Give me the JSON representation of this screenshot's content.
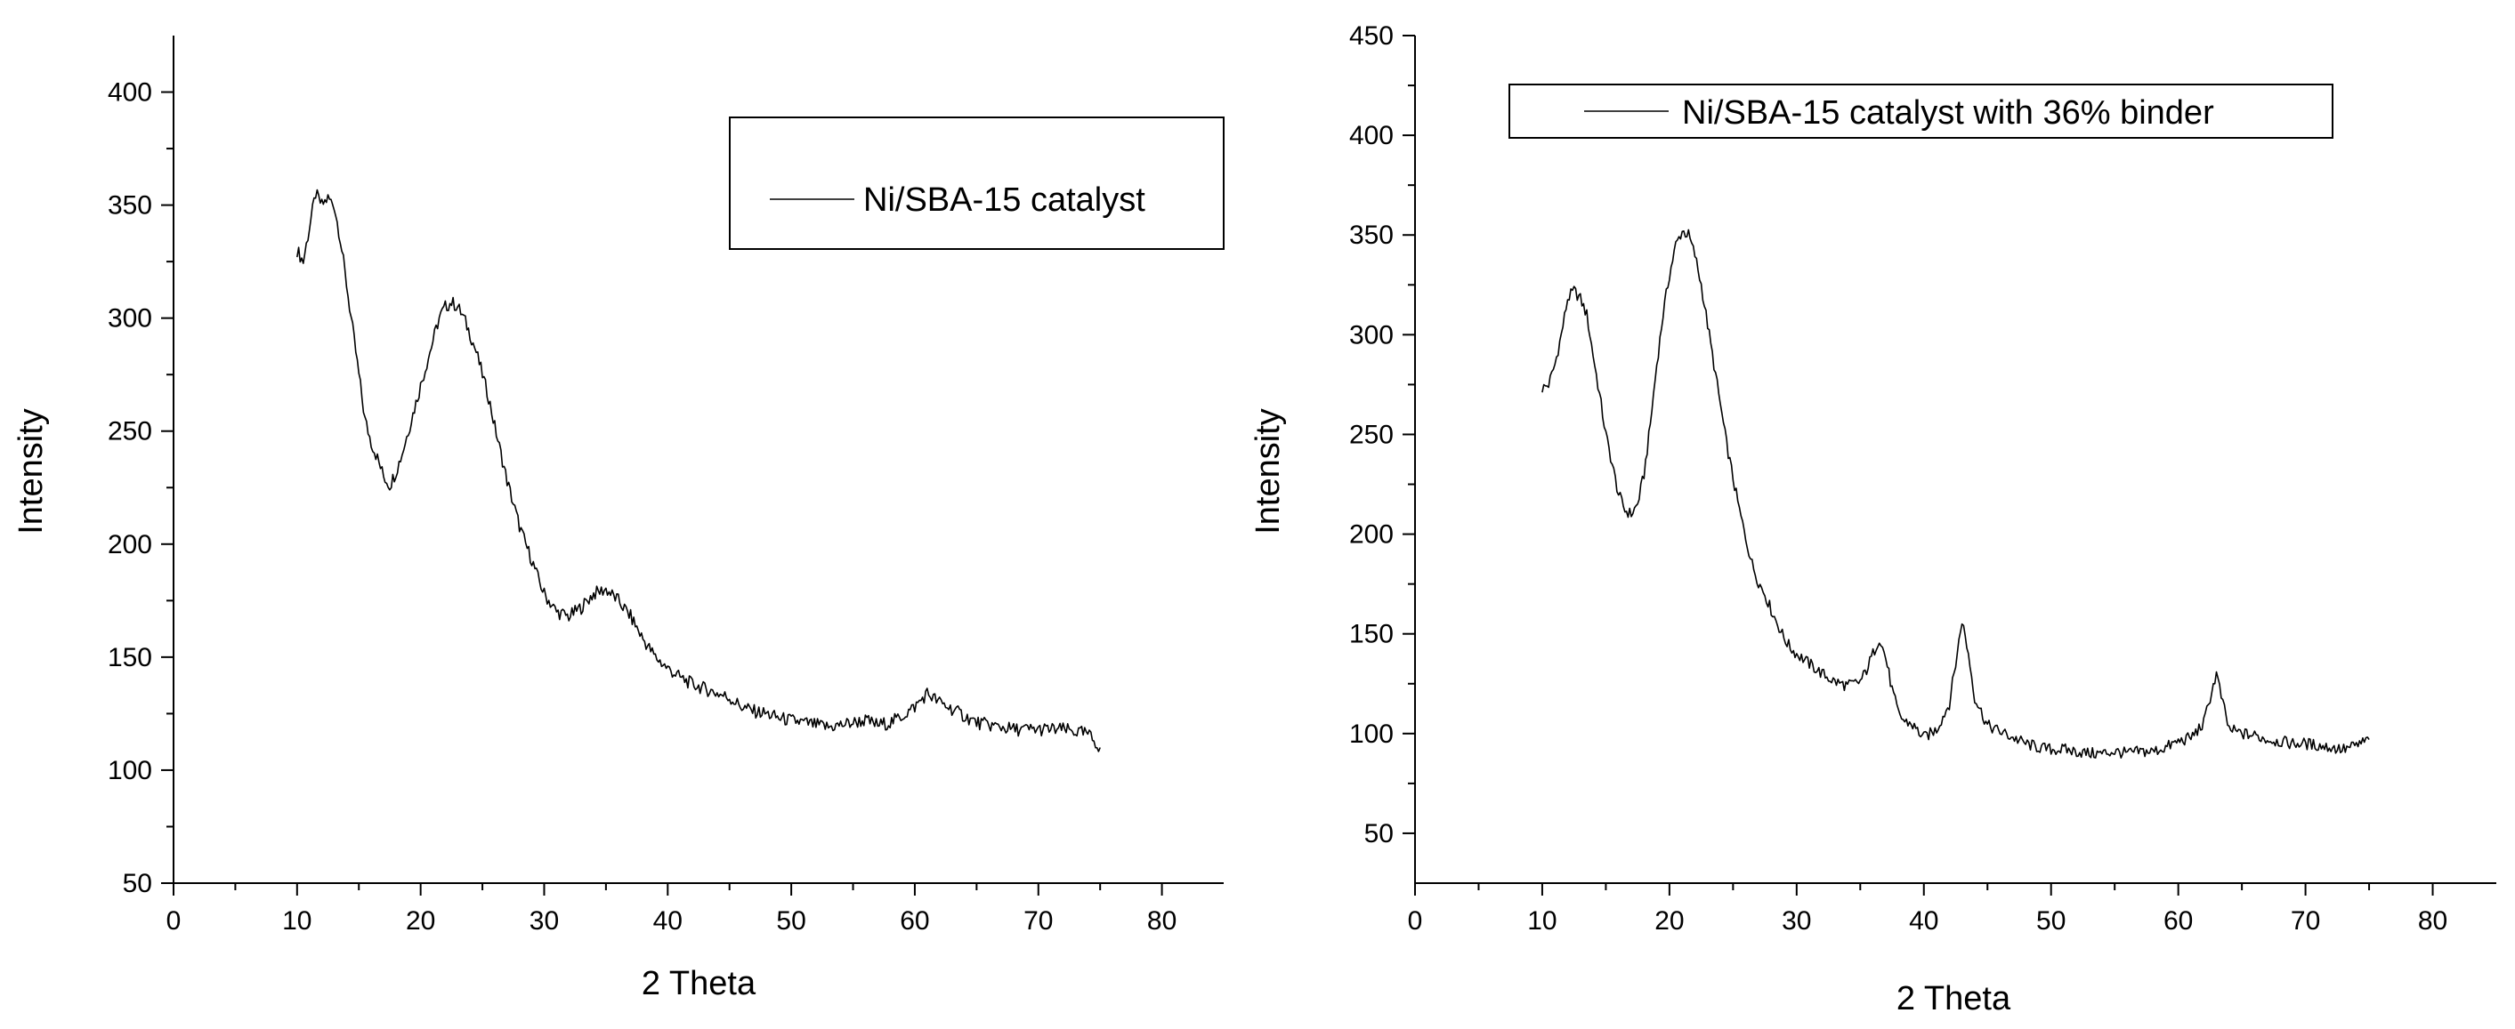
{
  "colors": {
    "line": "#000000",
    "axis": "#000000",
    "background": "#ffffff"
  },
  "chart_data": [
    {
      "type": "line",
      "title": "",
      "xlabel": "2 Theta",
      "ylabel": "Intensity",
      "xlim": [
        0,
        85
      ],
      "ylim": [
        50,
        425
      ],
      "x_ticks": [
        0,
        10,
        20,
        30,
        40,
        50,
        60,
        70,
        80
      ],
      "y_ticks": [
        50,
        100,
        150,
        200,
        250,
        300,
        350,
        400
      ],
      "legend_position": "top-right",
      "grid": false,
      "series": [
        {
          "name": "Ni/SBA-15 catalyst",
          "x": [
            10,
            10.5,
            11,
            11.5,
            12,
            12.5,
            13,
            13.5,
            14,
            14.5,
            15,
            15.5,
            16,
            16.5,
            17,
            17.5,
            18,
            18.5,
            19,
            19.5,
            20,
            20.5,
            21,
            21.5,
            22,
            22.5,
            23,
            23.5,
            24,
            24.5,
            25,
            25.5,
            26,
            26.5,
            27,
            27.5,
            28,
            28.5,
            29,
            29.5,
            30,
            31,
            32,
            33,
            34,
            35,
            36,
            37,
            38,
            39,
            40,
            41,
            42,
            43,
            44,
            45,
            46,
            47,
            48,
            49,
            50,
            51,
            52,
            53,
            54,
            55,
            56,
            57,
            58,
            59,
            60,
            61,
            62,
            63,
            64,
            65,
            66,
            67,
            68,
            69,
            70,
            71,
            72,
            73,
            74,
            75
          ],
          "values": [
            330,
            325,
            340,
            355,
            350,
            353,
            350,
            335,
            315,
            295,
            275,
            255,
            245,
            238,
            230,
            226,
            232,
            240,
            250,
            260,
            270,
            280,
            290,
            300,
            305,
            307,
            305,
            300,
            293,
            285,
            275,
            265,
            252,
            240,
            228,
            218,
            208,
            200,
            193,
            185,
            178,
            170,
            168,
            172,
            178,
            180,
            175,
            168,
            158,
            150,
            145,
            141,
            138,
            136,
            134,
            132,
            128,
            126,
            125,
            123,
            122,
            121,
            120,
            119,
            120,
            121,
            122,
            120,
            121,
            124,
            128,
            134,
            130,
            127,
            124,
            121,
            120,
            119,
            118,
            118,
            118,
            118,
            118,
            117,
            116,
            110
          ]
        }
      ]
    },
    {
      "type": "line",
      "title": "",
      "xlabel": "2 Theta",
      "ylabel": "Intensity",
      "xlim": [
        0,
        85
      ],
      "ylim": [
        25,
        450
      ],
      "x_ticks": [
        0,
        10,
        20,
        30,
        40,
        50,
        60,
        70,
        80
      ],
      "y_ticks": [
        50,
        100,
        150,
        200,
        250,
        300,
        350,
        400,
        450
      ],
      "legend_position": "top",
      "grid": false,
      "series": [
        {
          "name": "Ni/SBA-15 catalyst with 36% binder",
          "x": [
            10,
            10.5,
            11,
            11.5,
            12,
            12.5,
            13,
            13.5,
            14,
            14.5,
            15,
            15.5,
            16,
            16.5,
            17,
            17.5,
            18,
            18.5,
            19,
            19.5,
            20,
            20.5,
            21,
            21.5,
            22,
            22.5,
            23,
            23.5,
            24,
            24.5,
            25,
            25.5,
            26,
            26.5,
            27,
            27.5,
            28,
            28.5,
            29,
            29.5,
            30,
            31,
            32,
            33,
            34,
            35,
            35.5,
            36,
            36.5,
            37,
            37.5,
            38,
            38.5,
            39,
            40,
            41,
            42,
            42.5,
            43,
            43.5,
            44,
            45,
            46,
            47,
            48,
            49,
            50,
            51,
            52,
            53,
            54,
            55,
            56,
            57,
            58,
            59,
            60,
            61,
            62,
            62.5,
            63,
            63.5,
            64,
            65,
            66,
            67,
            68,
            69,
            70,
            71,
            72,
            73,
            74,
            75
          ],
          "values": [
            273,
            275,
            285,
            300,
            318,
            322,
            318,
            310,
            290,
            270,
            250,
            235,
            220,
            212,
            210,
            215,
            230,
            255,
            285,
            310,
            330,
            345,
            352,
            350,
            340,
            325,
            305,
            285,
            265,
            245,
            228,
            212,
            198,
            185,
            176,
            170,
            162,
            155,
            148,
            143,
            140,
            135,
            130,
            126,
            124,
            126,
            132,
            140,
            148,
            138,
            122,
            110,
            106,
            105,
            98,
            102,
            115,
            135,
            157,
            140,
            118,
            104,
            101,
            98,
            95,
            93,
            92,
            92,
            91,
            90,
            90,
            91,
            90,
            91,
            91,
            93,
            96,
            98,
            105,
            118,
            130,
            115,
            102,
            100,
            99,
            97,
            96,
            95,
            95,
            94,
            93,
            92,
            94,
            97
          ]
        }
      ]
    }
  ]
}
